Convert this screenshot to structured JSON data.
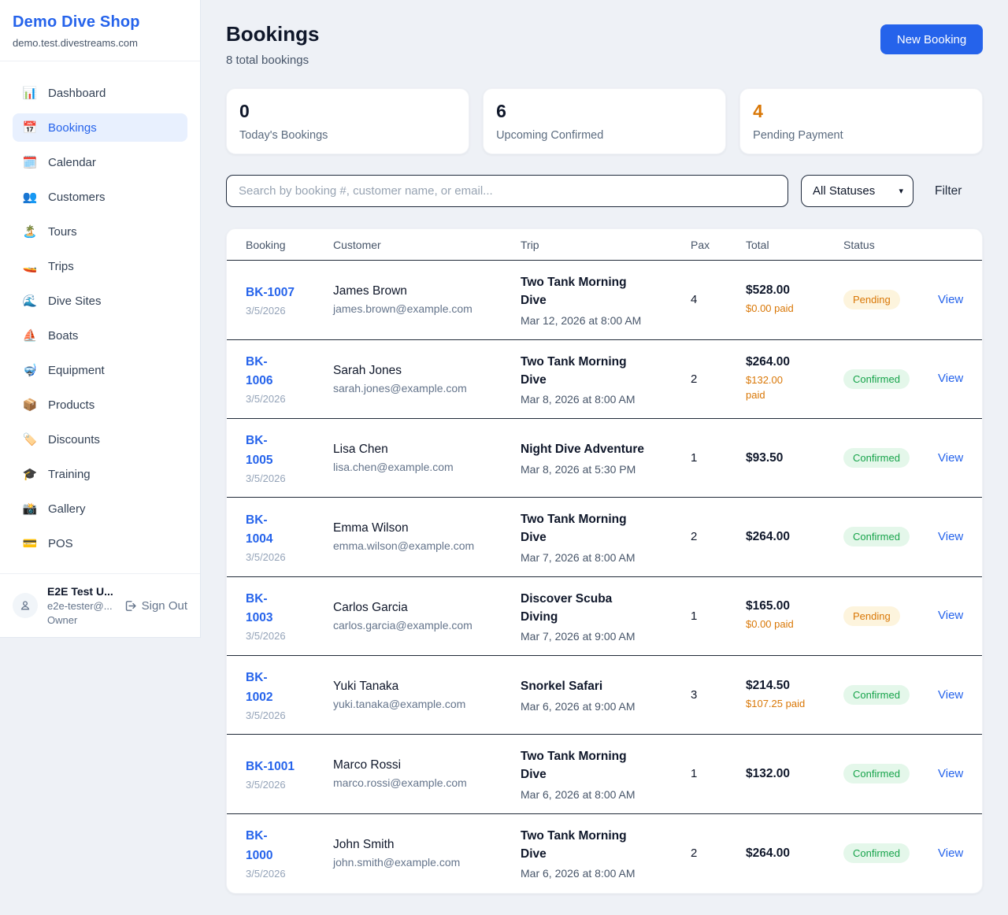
{
  "colors": {
    "accent": "#2563eb",
    "pending_text": "#d97706",
    "pending_bg": "#fdf4dd",
    "confirmed_text": "#16a34a",
    "confirmed_bg": "#e4f7ea"
  },
  "sidebar": {
    "title": "Demo Dive Shop",
    "subtitle": "demo.test.divestreams.com",
    "items": [
      {
        "label": "Dashboard",
        "icon": "📊",
        "icon_name": "bar-chart-icon",
        "active": false
      },
      {
        "label": "Bookings",
        "icon": "📅",
        "icon_name": "calendar-icon",
        "active": true
      },
      {
        "label": "Calendar",
        "icon": "🗓️",
        "icon_name": "spiral-calendar-icon",
        "active": false
      },
      {
        "label": "Customers",
        "icon": "👥",
        "icon_name": "people-icon",
        "active": false
      },
      {
        "label": "Tours",
        "icon": "🏝️",
        "icon_name": "island-icon",
        "active": false
      },
      {
        "label": "Trips",
        "icon": "🚤",
        "icon_name": "speedboat-icon",
        "active": false
      },
      {
        "label": "Dive Sites",
        "icon": "🌊",
        "icon_name": "wave-icon",
        "active": false
      },
      {
        "label": "Boats",
        "icon": "⛵",
        "icon_name": "sailboat-icon",
        "active": false
      },
      {
        "label": "Equipment",
        "icon": "🤿",
        "icon_name": "diving-mask-icon",
        "active": false
      },
      {
        "label": "Products",
        "icon": "📦",
        "icon_name": "package-icon",
        "active": false
      },
      {
        "label": "Discounts",
        "icon": "🏷️",
        "icon_name": "tag-icon",
        "active": false
      },
      {
        "label": "Training",
        "icon": "🎓",
        "icon_name": "graduation-cap-icon",
        "active": false
      },
      {
        "label": "Gallery",
        "icon": "📸",
        "icon_name": "camera-icon",
        "active": false
      },
      {
        "label": "POS",
        "icon": "💳",
        "icon_name": "credit-card-icon",
        "active": false
      }
    ],
    "user": {
      "name": "E2E Test U...",
      "email": "e2e-tester@...",
      "role": "Owner",
      "sign_out_label": "Sign Out"
    }
  },
  "header": {
    "title": "Bookings",
    "subtitle": "8 total bookings",
    "new_booking_label": "New Booking"
  },
  "stats": [
    {
      "value": "0",
      "label": "Today's Bookings",
      "accent": "dark"
    },
    {
      "value": "6",
      "label": "Upcoming Confirmed",
      "accent": "dark"
    },
    {
      "value": "4",
      "label": "Pending Payment",
      "accent": "orange"
    }
  ],
  "filters": {
    "search_placeholder": "Search by booking #, customer name, or email...",
    "status_selected": "All Statuses",
    "filter_label": "Filter"
  },
  "table": {
    "columns": [
      "Booking",
      "Customer",
      "Trip",
      "Pax",
      "Total",
      "Status"
    ],
    "view_label": "View",
    "rows": [
      {
        "id": "BK-1007",
        "id_wrap": false,
        "date": "3/5/2026",
        "customer": "James Brown",
        "email": "james.brown@example.com",
        "trip": "Two Tank Morning Dive",
        "trip_wrap": true,
        "trip_time": "Mar 12, 2026 at 8:00 AM",
        "pax": "4",
        "total": "$528.00",
        "paid": "$0.00 paid",
        "paid_wrap": false,
        "status": "Pending",
        "status_type": "pending"
      },
      {
        "id": "BK-1006",
        "id_wrap": true,
        "date": "3/5/2026",
        "customer": "Sarah Jones",
        "email": "sarah.jones@example.com",
        "trip": "Two Tank Morning Dive",
        "trip_wrap": true,
        "trip_time": "Mar 8, 2026 at 8:00 AM",
        "pax": "2",
        "total": "$264.00",
        "paid": "$132.00 paid",
        "paid_wrap": true,
        "status": "Confirmed",
        "status_type": "confirmed"
      },
      {
        "id": "BK-1005",
        "id_wrap": true,
        "date": "3/5/2026",
        "customer": "Lisa Chen",
        "email": "lisa.chen@example.com",
        "trip": "Night Dive Adventure",
        "trip_wrap": false,
        "trip_time": "Mar 8, 2026 at 5:30 PM",
        "pax": "1",
        "total": "$93.50",
        "paid": null,
        "paid_wrap": false,
        "status": "Confirmed",
        "status_type": "confirmed"
      },
      {
        "id": "BK-1004",
        "id_wrap": true,
        "date": "3/5/2026",
        "customer": "Emma Wilson",
        "email": "emma.wilson@example.com",
        "trip": "Two Tank Morning Dive",
        "trip_wrap": true,
        "trip_time": "Mar 7, 2026 at 8:00 AM",
        "pax": "2",
        "total": "$264.00",
        "paid": null,
        "paid_wrap": false,
        "status": "Confirmed",
        "status_type": "confirmed"
      },
      {
        "id": "BK-1003",
        "id_wrap": true,
        "date": "3/5/2026",
        "customer": "Carlos Garcia",
        "email": "carlos.garcia@example.com",
        "trip": "Discover Scuba Diving",
        "trip_wrap": true,
        "trip_time": "Mar 7, 2026 at 9:00 AM",
        "pax": "1",
        "total": "$165.00",
        "paid": "$0.00 paid",
        "paid_wrap": false,
        "status": "Pending",
        "status_type": "pending"
      },
      {
        "id": "BK-1002",
        "id_wrap": true,
        "date": "3/5/2026",
        "customer": "Yuki Tanaka",
        "email": "yuki.tanaka@example.com",
        "trip": "Snorkel Safari",
        "trip_wrap": false,
        "trip_time": "Mar 6, 2026 at 9:00 AM",
        "pax": "3",
        "total": "$214.50",
        "paid": "$107.25 paid",
        "paid_wrap": false,
        "status": "Confirmed",
        "status_type": "confirmed"
      },
      {
        "id": "BK-1001",
        "id_wrap": false,
        "date": "3/5/2026",
        "customer": "Marco Rossi",
        "email": "marco.rossi@example.com",
        "trip": "Two Tank Morning Dive",
        "trip_wrap": true,
        "trip_time": "Mar 6, 2026 at 8:00 AM",
        "pax": "1",
        "total": "$132.00",
        "paid": null,
        "paid_wrap": false,
        "status": "Confirmed",
        "status_type": "confirmed"
      },
      {
        "id": "BK-1000",
        "id_wrap": true,
        "date": "3/5/2026",
        "customer": "John Smith",
        "email": "john.smith@example.com",
        "trip": "Two Tank Morning Dive",
        "trip_wrap": true,
        "trip_time": "Mar 6, 2026 at 8:00 AM",
        "pax": "2",
        "total": "$264.00",
        "paid": null,
        "paid_wrap": false,
        "status": "Confirmed",
        "status_type": "confirmed"
      }
    ]
  }
}
